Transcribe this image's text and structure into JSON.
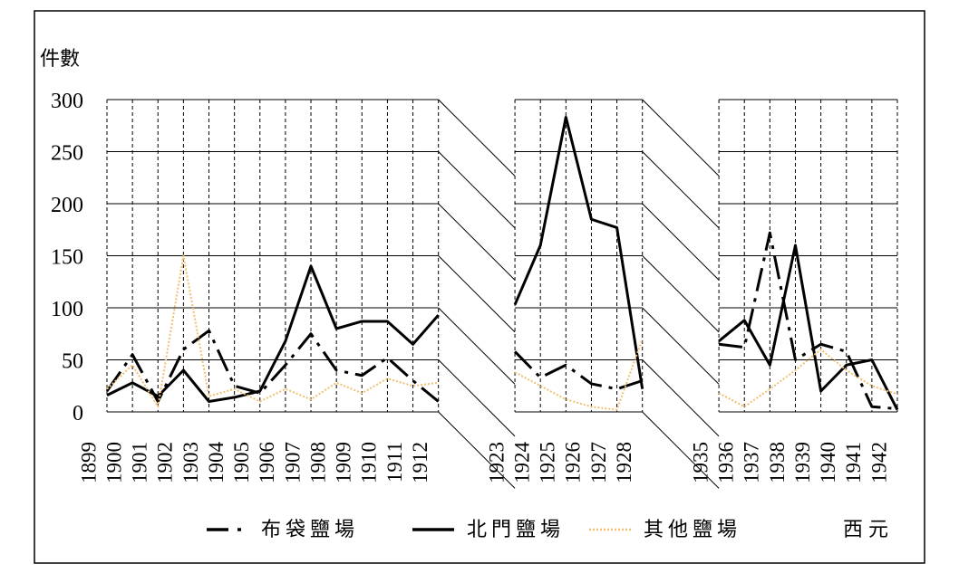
{
  "chart_data": {
    "type": "line",
    "y_label": "件數",
    "x_label": "西元",
    "categories": [
      "1899",
      "1900",
      "1901",
      "1902",
      "1903",
      "1904",
      "1905",
      "1906",
      "1907",
      "1908",
      "1909",
      "1910",
      "1911",
      "1912",
      null,
      null,
      "1923",
      "1924",
      "1925",
      "1926",
      "1927",
      "1928",
      null,
      null,
      "1935",
      "1936",
      "1937",
      "1938",
      "1939",
      "1940",
      "1941",
      "1942"
    ],
    "series": [
      {
        "name": "布袋鹽場",
        "color": "#000000",
        "style": "dashdot",
        "values": [
          20,
          55,
          10,
          60,
          78,
          25,
          18,
          45,
          75,
          40,
          35,
          52,
          30,
          10,
          null,
          null,
          58,
          33,
          45,
          27,
          22,
          30,
          null,
          null,
          65,
          62,
          172,
          50,
          65,
          58,
          5,
          3
        ]
      },
      {
        "name": "北門鹽場",
        "color": "#000000",
        "style": "solid",
        "values": [
          16,
          28,
          15,
          40,
          10,
          14,
          20,
          68,
          140,
          80,
          87,
          87,
          65,
          93,
          null,
          null,
          103,
          160,
          283,
          185,
          177,
          22,
          null,
          null,
          68,
          88,
          45,
          160,
          20,
          45,
          50,
          2
        ]
      },
      {
        "name": "其他鹽場",
        "color": "#f0c070",
        "style": "dotted",
        "values": [
          22,
          45,
          5,
          150,
          15,
          22,
          10,
          22,
          12,
          28,
          18,
          32,
          25,
          28,
          null,
          null,
          38,
          25,
          12,
          5,
          2,
          70,
          null,
          null,
          18,
          5,
          22,
          40,
          60,
          40,
          25,
          17
        ]
      }
    ],
    "ylim": [
      0,
      300
    ],
    "yticks": [
      0,
      50,
      100,
      150,
      200,
      250,
      300
    ],
    "grid": true
  }
}
